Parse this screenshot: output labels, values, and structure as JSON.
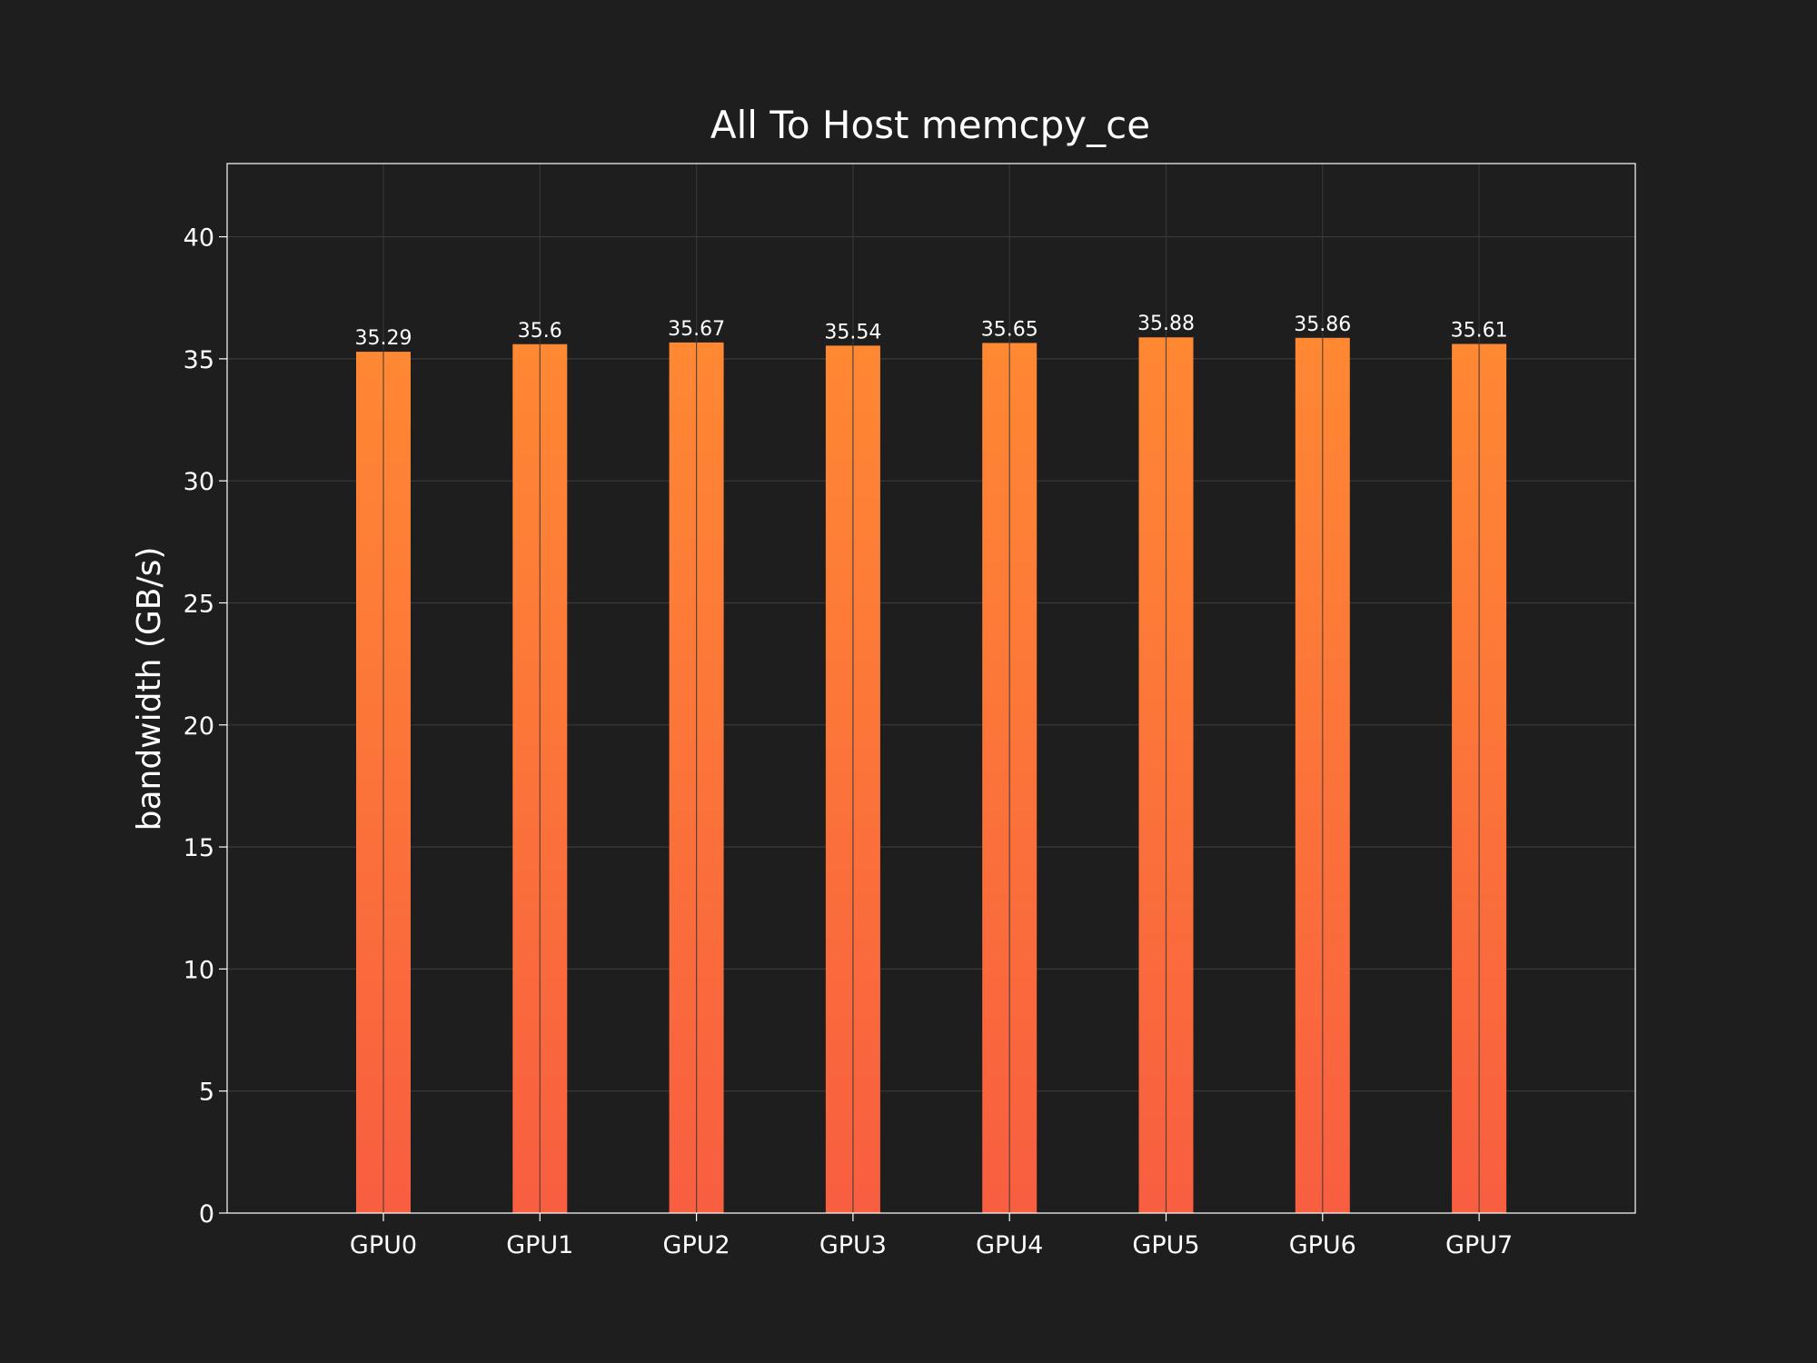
{
  "chart_data": {
    "type": "bar",
    "title": "All To Host memcpy_ce",
    "xlabel": "",
    "ylabel": "bandwidth (GB/s)",
    "categories": [
      "GPU0",
      "GPU1",
      "GPU2",
      "GPU3",
      "GPU4",
      "GPU5",
      "GPU6",
      "GPU7"
    ],
    "values": [
      35.29,
      35.6,
      35.67,
      35.54,
      35.65,
      35.88,
      35.86,
      35.61
    ],
    "data_labels": [
      "35.29",
      "35.6",
      "35.67",
      "35.54",
      "35.65",
      "35.88",
      "35.86",
      "35.61"
    ],
    "ylim": [
      0,
      43
    ],
    "yticks": [
      0,
      5,
      10,
      15,
      20,
      25,
      30,
      35,
      40
    ],
    "grid": true,
    "legend": "none",
    "colors": {
      "background": "#1e1e1e",
      "bar_top": "#ff8833",
      "bar_bottom": "#f85e40",
      "grid": "#3a3a3a",
      "frame": "#ffffff",
      "text": "#ffffff"
    }
  }
}
